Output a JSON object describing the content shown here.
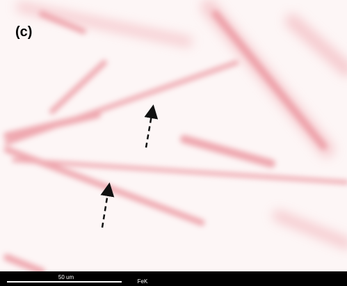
{
  "panel_label": "(c)",
  "scale_bar": {
    "label": "50 um"
  },
  "element": "FeK"
}
